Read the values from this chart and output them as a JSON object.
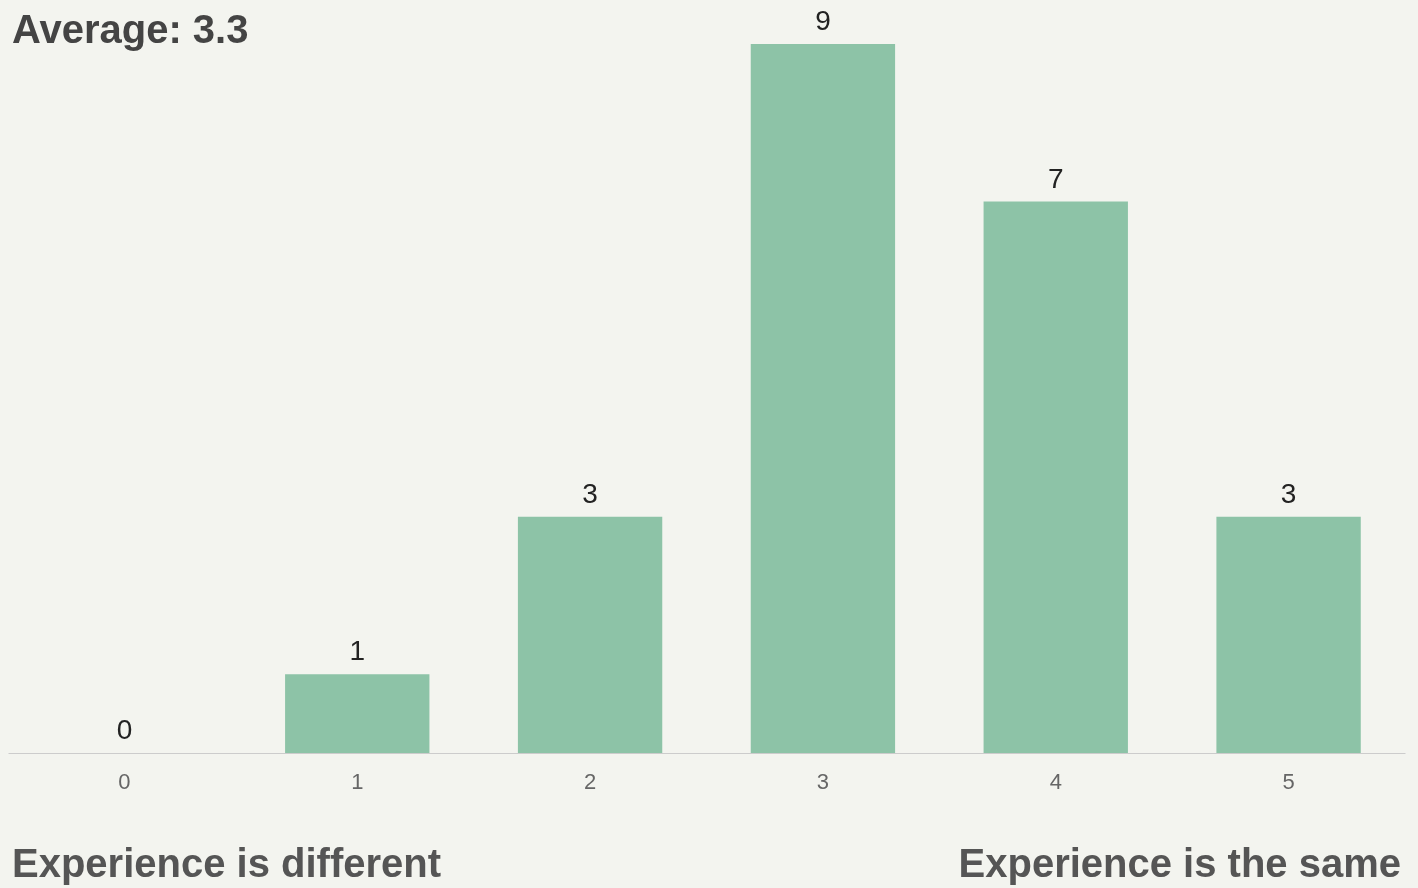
{
  "chart_data": {
    "type": "bar",
    "title": "Average: 3.3",
    "categories": [
      "0",
      "1",
      "2",
      "3",
      "4",
      "5"
    ],
    "values": [
      0,
      1,
      3,
      9,
      7,
      3
    ],
    "color": "#8dc3a7",
    "data_labels": true,
    "tick_labels": "x",
    "annotations": [
      "Experience is different",
      "Experience is the same"
    ]
  }
}
